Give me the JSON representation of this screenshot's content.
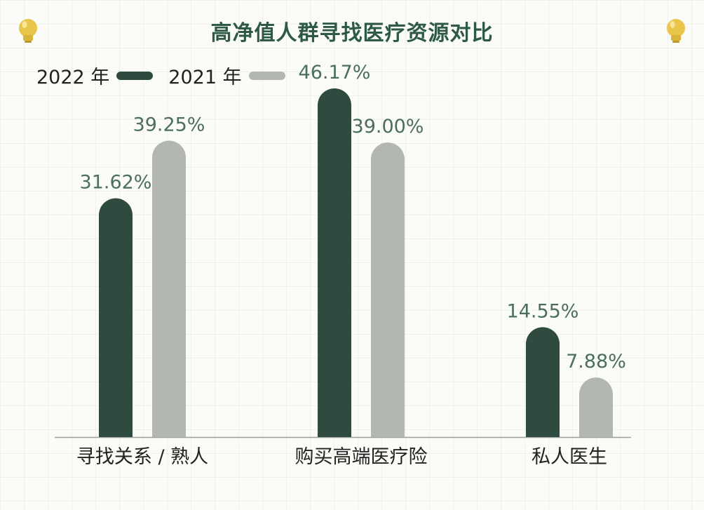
{
  "colors": {
    "series_2022": "#2f4a3e",
    "series_2021": "#b3b7b2",
    "title": "#2e5a45",
    "value_label": "#4b6e5d",
    "axis": "#9aa19d",
    "icon": "#e9c64a"
  },
  "icons": {
    "left": "lightbulb-icon",
    "right": "lightbulb-icon"
  },
  "chart_data": {
    "type": "bar",
    "title": "高净值人群寻找医疗资源对比",
    "xlabel": "",
    "ylabel": "",
    "ylim": [
      0,
      50
    ],
    "grid": true,
    "legend_position": "top-left",
    "categories": [
      "寻找关系 / 熟人",
      "购买高端医疗险",
      "私人医生"
    ],
    "series": [
      {
        "name": "2022 年",
        "values": [
          31.62,
          46.17,
          14.55
        ],
        "labels": [
          "31.62%",
          "46.17%",
          "14.55%"
        ]
      },
      {
        "name": "2021 年",
        "values": [
          39.25,
          39.0,
          7.88
        ],
        "labels": [
          "39.25%",
          "39.00%",
          "7.88%"
        ]
      }
    ]
  }
}
